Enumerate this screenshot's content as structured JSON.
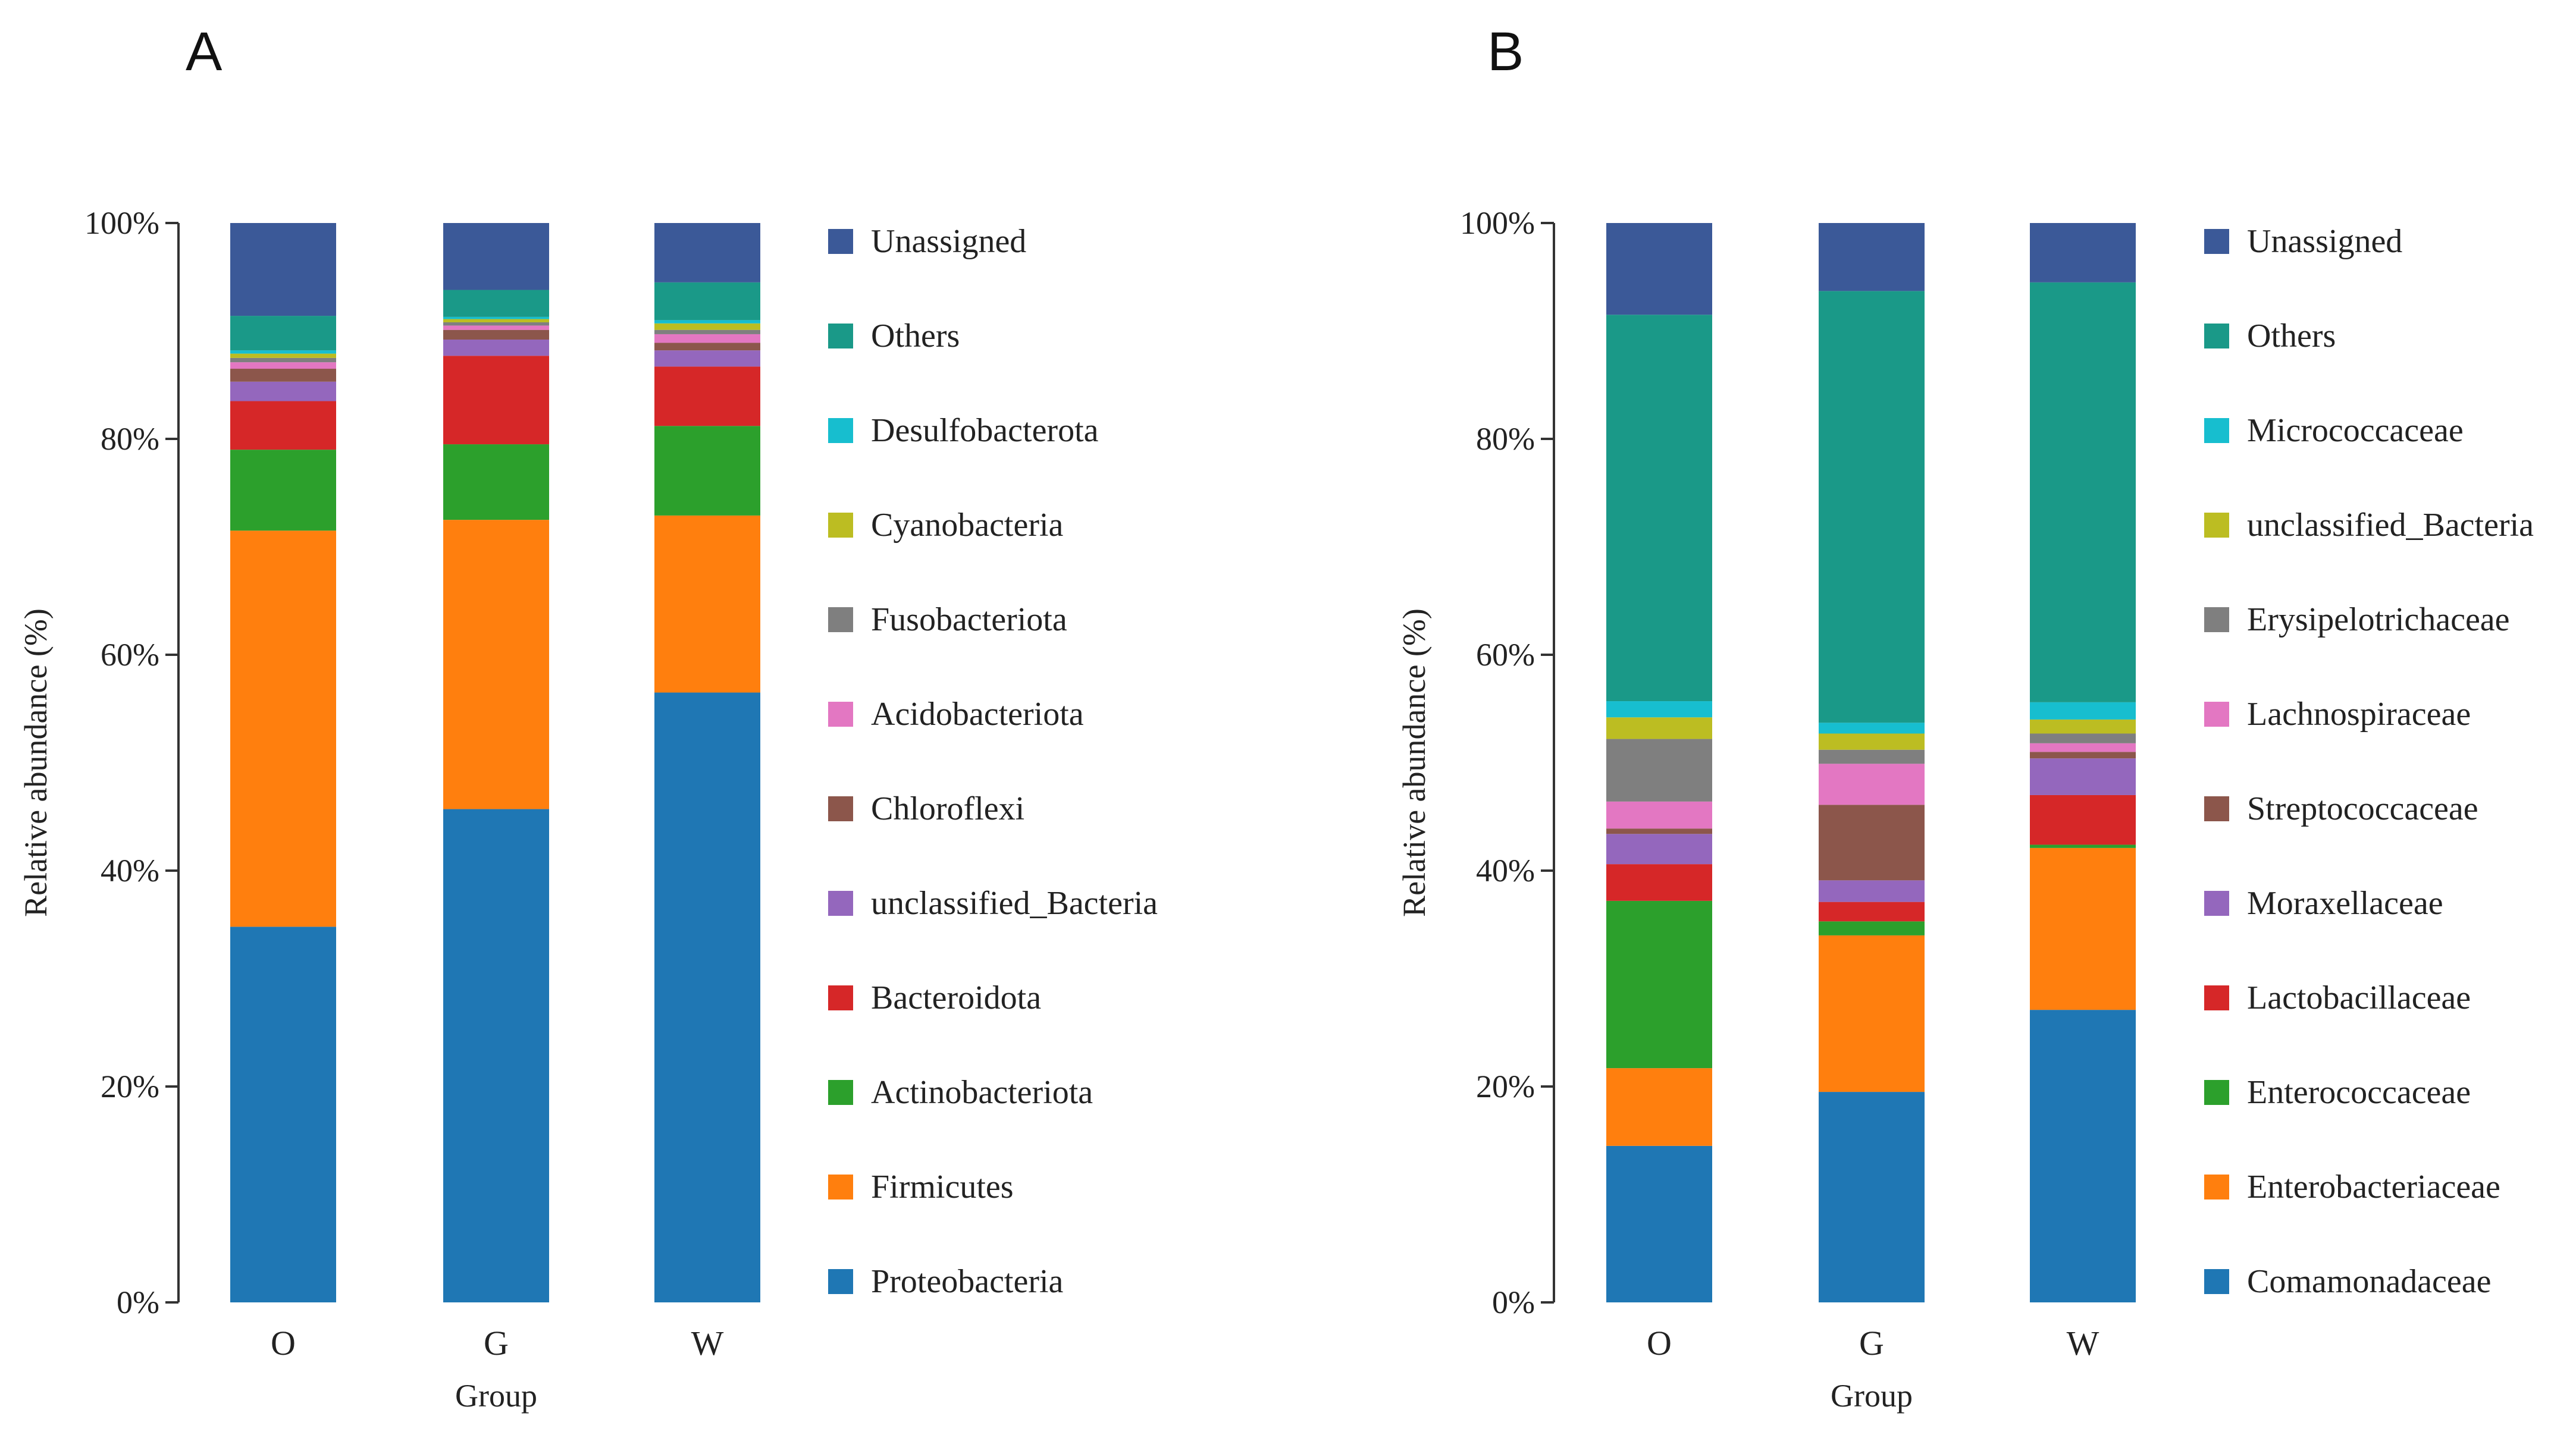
{
  "chart_data": [
    {
      "panel": "A",
      "type": "bar",
      "stacked": true,
      "xlabel": "Group",
      "ylabel": "Relative abundance (%)",
      "ylim": [
        0,
        100
      ],
      "yticks": [
        "0%",
        "20%",
        "40%",
        "60%",
        "80%",
        "100%"
      ],
      "categories": [
        "O",
        "G",
        "W"
      ],
      "series": [
        {
          "name": "Proteobacteria",
          "color": "#1f77b4",
          "values": [
            34.8,
            45.7,
            56.5
          ]
        },
        {
          "name": "Firmicutes",
          "color": "#ff7f0e",
          "values": [
            36.7,
            26.8,
            16.4
          ]
        },
        {
          "name": "Actinobacteriota",
          "color": "#2ca02c",
          "values": [
            7.5,
            7.0,
            8.3
          ]
        },
        {
          "name": "Bacteroidota",
          "color": "#d62728",
          "values": [
            4.5,
            8.2,
            5.5
          ]
        },
        {
          "name": "unclassified_Bacteria",
          "color": "#9467bd",
          "values": [
            1.8,
            1.5,
            1.5
          ]
        },
        {
          "name": "Chloroflexi",
          "color": "#8c564b",
          "values": [
            1.2,
            0.9,
            0.7
          ]
        },
        {
          "name": "Acidobacteriota",
          "color": "#e377c2",
          "values": [
            0.6,
            0.4,
            0.8
          ]
        },
        {
          "name": "Fusobacteriota",
          "color": "#7f7f7f",
          "values": [
            0.4,
            0.3,
            0.4
          ]
        },
        {
          "name": "Cyanobacteria",
          "color": "#bcbd22",
          "values": [
            0.4,
            0.3,
            0.6
          ]
        },
        {
          "name": "Desulfobacterota",
          "color": "#17becf",
          "values": [
            0.3,
            0.2,
            0.3
          ]
        },
        {
          "name": "Others",
          "color": "#1a9988",
          "values": [
            3.2,
            2.5,
            3.5
          ]
        },
        {
          "name": "Unassigned",
          "color": "#3b5998",
          "values": [
            8.6,
            6.2,
            5.5
          ]
        }
      ]
    },
    {
      "panel": "B",
      "type": "bar",
      "stacked": true,
      "xlabel": "Group",
      "ylabel": "Relative abundance (%)",
      "ylim": [
        0,
        100
      ],
      "yticks": [
        "0%",
        "20%",
        "40%",
        "60%",
        "80%",
        "100%"
      ],
      "categories": [
        "O",
        "G",
        "W"
      ],
      "series": [
        {
          "name": "Comamonadaceae",
          "color": "#1f77b4",
          "values": [
            14.5,
            19.5,
            27.1
          ]
        },
        {
          "name": "Enterobacteriaceae",
          "color": "#ff7f0e",
          "values": [
            7.2,
            14.5,
            15.0
          ]
        },
        {
          "name": "Enterococcaceae",
          "color": "#2ca02c",
          "values": [
            15.5,
            1.3,
            0.3
          ]
        },
        {
          "name": "Lactobacillaceae",
          "color": "#d62728",
          "values": [
            3.4,
            1.8,
            4.6
          ]
        },
        {
          "name": "Moraxellaceae",
          "color": "#9467bd",
          "values": [
            2.8,
            2.0,
            3.4
          ]
        },
        {
          "name": "Streptococcaceae",
          "color": "#8c564b",
          "values": [
            0.5,
            7.0,
            0.6
          ]
        },
        {
          "name": "Lachnospiraceae",
          "color": "#e377c2",
          "values": [
            2.5,
            3.8,
            0.8
          ]
        },
        {
          "name": "Erysipelotrichaceae",
          "color": "#7f7f7f",
          "values": [
            5.8,
            1.3,
            0.9
          ]
        },
        {
          "name": "unclassified_Bacteria",
          "color": "#bcbd22",
          "values": [
            2.0,
            1.5,
            1.3
          ]
        },
        {
          "name": "Micrococcaceae",
          "color": "#17becf",
          "values": [
            1.5,
            1.0,
            1.6
          ]
        },
        {
          "name": "Others",
          "color": "#1a9988",
          "values": [
            35.8,
            40.0,
            38.9
          ]
        },
        {
          "name": "Unassigned",
          "color": "#3b5998",
          "values": [
            8.5,
            6.3,
            5.5
          ]
        }
      ]
    }
  ]
}
